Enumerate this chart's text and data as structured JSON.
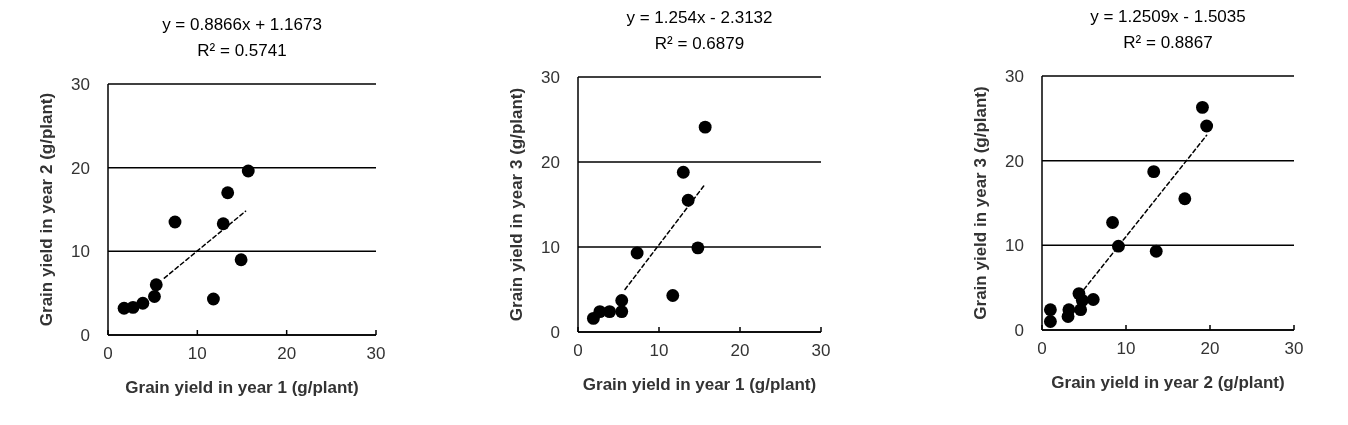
{
  "chart_data": [
    {
      "type": "scatter",
      "title": "y = 0.8866x + 1.1673",
      "subtitle": "R² = 0.5741",
      "xlabel": "Grain yield in year 1 (g/plant)",
      "ylabel": "Grain yield in year 2 (g/plant)",
      "xlim": [
        0,
        30
      ],
      "ylim": [
        0,
        30
      ],
      "xticks": [
        0,
        10,
        20,
        30
      ],
      "yticks": [
        0,
        10,
        20,
        30
      ],
      "grid": "y",
      "series": [
        {
          "color": "#000000",
          "marker": "circle",
          "x": [
            1.8,
            2.8,
            3.9,
            5.2,
            5.4,
            7.5,
            11.8,
            12.9,
            13.4,
            14.9,
            15.7
          ],
          "values": [
            3.2,
            3.3,
            3.8,
            4.6,
            6.0,
            13.5,
            4.3,
            13.3,
            17.0,
            9.0,
            19.6
          ]
        },
        {
          "type": "line",
          "color": "#000000",
          "line_style": "dashed",
          "x": [
            6.3,
            15.4
          ],
          "values": [
            6.8,
            14.8
          ]
        }
      ]
    },
    {
      "type": "scatter",
      "title": "y = 1.254x - 2.3132",
      "subtitle": "R² = 0.6879",
      "xlabel": "Grain yield in year 1 (g/plant)",
      "ylabel": "Grain yield in year 3 (g/plant)",
      "xlim": [
        0,
        30
      ],
      "ylim": [
        0,
        30
      ],
      "xticks": [
        0,
        10,
        20,
        30
      ],
      "yticks": [
        0,
        10,
        20,
        30
      ],
      "grid": "y",
      "series": [
        {
          "color": "#000000",
          "marker": "circle",
          "x": [
            1.9,
            2.7,
            3.9,
            5.4,
            5.4,
            7.3,
            11.7,
            13.0,
            13.6,
            14.8,
            15.7
          ],
          "values": [
            1.6,
            2.4,
            2.4,
            2.4,
            3.7,
            9.3,
            4.3,
            18.8,
            15.5,
            9.9,
            24.1
          ]
        },
        {
          "type": "line",
          "color": "#000000",
          "line_style": "dashed",
          "x": [
            5.8,
            15.7
          ],
          "values": [
            5.0,
            17.4
          ]
        }
      ]
    },
    {
      "type": "scatter",
      "title": "y = 1.2509x - 1.5035",
      "subtitle": "R² = 0.8867",
      "xlabel": "Grain yield in year 2 (g/plant)",
      "ylabel": "Grain yield in year 3 (g/plant)",
      "xlim": [
        0,
        30
      ],
      "ylim": [
        0,
        30
      ],
      "xticks": [
        0,
        10,
        20,
        30
      ],
      "yticks": [
        0,
        10,
        20,
        30
      ],
      "grid": "y",
      "series": [
        {
          "color": "#000000",
          "marker": "circle",
          "x": [
            1.0,
            1.0,
            3.1,
            3.2,
            4.4,
            4.6,
            4.8,
            6.1,
            8.4,
            9.1,
            13.3,
            13.6,
            17.0,
            19.1,
            19.6
          ],
          "values": [
            2.4,
            1.0,
            1.6,
            2.4,
            4.3,
            2.4,
            3.5,
            3.6,
            12.7,
            9.9,
            18.7,
            9.3,
            15.5,
            26.3,
            24.1
          ]
        },
        {
          "type": "line",
          "color": "#000000",
          "line_style": "dashed",
          "x": [
            5.0,
            19.6
          ],
          "values": [
            4.8,
            23.0
          ]
        }
      ]
    }
  ]
}
